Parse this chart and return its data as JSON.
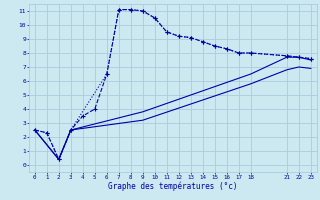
{
  "background_color": "#cce8f0",
  "grid_color": "#aaccdd",
  "line_color": "#0000aa",
  "xlabel": "Graphe des températures (°c)",
  "xlim": [
    -0.5,
    23.5
  ],
  "ylim": [
    -0.5,
    11.5
  ],
  "xtick_positions": [
    0,
    1,
    2,
    3,
    4,
    5,
    6,
    7,
    8,
    9,
    10,
    11,
    12,
    13,
    14,
    15,
    16,
    17,
    18,
    21,
    22,
    23
  ],
  "xtick_labels": [
    "0",
    "1",
    "2",
    "3",
    "4",
    "5",
    "6",
    "7",
    "8",
    "9",
    "10",
    "11",
    "12",
    "13",
    "14",
    "15",
    "16",
    "17",
    "18",
    "21",
    "22",
    "23"
  ],
  "ytick_positions": [
    0,
    1,
    2,
    3,
    4,
    5,
    6,
    7,
    8,
    9,
    10,
    11
  ],
  "ytick_labels": [
    "0",
    "1",
    "2",
    "3",
    "4",
    "5",
    "6",
    "7",
    "8",
    "9",
    "10",
    "11"
  ],
  "s1_x": [
    0,
    1,
    2,
    3,
    4,
    5,
    6,
    7,
    8,
    9,
    10,
    11,
    12,
    13,
    14,
    15,
    16,
    17,
    18,
    21,
    22,
    23
  ],
  "s1_y": [
    2.5,
    2.3,
    0.4,
    2.5,
    3.5,
    4.0,
    6.5,
    11.1,
    11.1,
    11.0,
    10.5,
    9.5,
    9.2,
    9.1,
    8.8,
    8.5,
    8.3,
    8.0,
    8.0,
    7.8,
    7.7,
    7.6
  ],
  "s2_x": [
    0,
    1,
    2,
    3,
    6,
    7,
    8,
    9,
    10,
    11,
    12,
    13,
    14,
    15,
    16,
    17,
    18,
    21,
    22,
    23
  ],
  "s2_y": [
    2.5,
    2.3,
    0.4,
    2.5,
    6.5,
    11.1,
    11.1,
    11.0,
    10.5,
    9.5,
    9.2,
    9.1,
    8.8,
    8.5,
    8.3,
    8.0,
    8.0,
    7.8,
    7.7,
    7.6
  ],
  "s3_x": [
    0,
    2,
    3,
    9,
    18,
    21,
    22,
    23
  ],
  "s3_y": [
    2.5,
    0.4,
    2.5,
    3.8,
    6.5,
    7.7,
    7.7,
    7.5
  ],
  "s4_x": [
    0,
    2,
    3,
    9,
    18,
    21,
    22,
    23
  ],
  "s4_y": [
    2.5,
    0.4,
    2.5,
    3.2,
    5.8,
    6.8,
    7.0,
    6.9
  ]
}
